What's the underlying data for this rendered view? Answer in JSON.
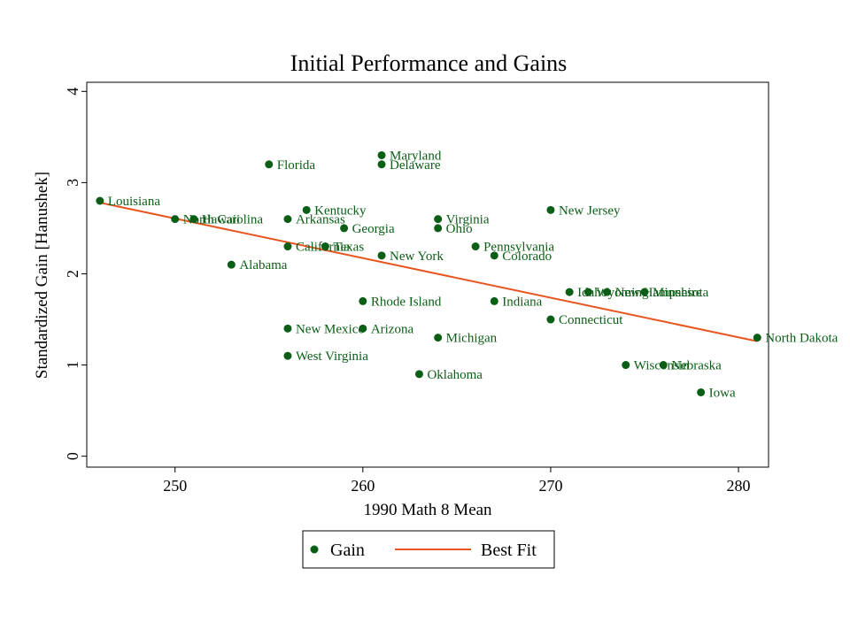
{
  "chart_data": {
    "type": "scatter",
    "title": "Initial Performance and Gains",
    "xlabel": "1990 Math 8 Mean",
    "ylabel": "Standardized Gain [Hanushek]",
    "xlim": [
      245.3,
      281.6
    ],
    "ylim": [
      -0.12,
      4.1
    ],
    "xticks": [
      250,
      260,
      270,
      280
    ],
    "yticks": [
      0,
      1,
      2,
      3,
      4
    ],
    "grid": false,
    "legend_position": "bottom-center",
    "legend": [
      {
        "label": "Gain",
        "kind": "marker"
      },
      {
        "label": "Best Fit",
        "kind": "line"
      }
    ],
    "colors": {
      "points": "#0b5e16",
      "fit": "#e8541e",
      "labels": "#0b5e16",
      "text": "#000000"
    },
    "series": [
      {
        "name": "Gain",
        "points": [
          {
            "state": "Louisiana",
            "x": 246,
            "y": 2.8
          },
          {
            "state": "North Carolina",
            "x": 250,
            "y": 2.6
          },
          {
            "state": "Hawaii",
            "x": 251,
            "y": 2.6
          },
          {
            "state": "Alabama",
            "x": 253,
            "y": 2.1
          },
          {
            "state": "Florida",
            "x": 255,
            "y": 3.2
          },
          {
            "state": "Arkansas",
            "x": 256,
            "y": 2.6
          },
          {
            "state": "California",
            "x": 256,
            "y": 2.3
          },
          {
            "state": "New Mexico",
            "x": 256,
            "y": 1.4
          },
          {
            "state": "West Virginia",
            "x": 256,
            "y": 1.1
          },
          {
            "state": "Kentucky",
            "x": 257,
            "y": 2.7
          },
          {
            "state": "Texas",
            "x": 258,
            "y": 2.3
          },
          {
            "state": "Georgia",
            "x": 259,
            "y": 2.5
          },
          {
            "state": "Rhode Island",
            "x": 260,
            "y": 1.7
          },
          {
            "state": "Arizona",
            "x": 260,
            "y": 1.4
          },
          {
            "state": "Maryland",
            "x": 261,
            "y": 3.3
          },
          {
            "state": "Delaware",
            "x": 261,
            "y": 3.2
          },
          {
            "state": "New York",
            "x": 261,
            "y": 2.2
          },
          {
            "state": "Oklahoma",
            "x": 263,
            "y": 0.9
          },
          {
            "state": "Virginia",
            "x": 264,
            "y": 2.6
          },
          {
            "state": "Ohio",
            "x": 264,
            "y": 2.5
          },
          {
            "state": "Michigan",
            "x": 264,
            "y": 1.3
          },
          {
            "state": "Pennsylvania",
            "x": 266,
            "y": 2.3
          },
          {
            "state": "Colorado",
            "x": 267,
            "y": 2.2
          },
          {
            "state": "Indiana",
            "x": 267,
            "y": 1.7
          },
          {
            "state": "New Jersey",
            "x": 270,
            "y": 2.7
          },
          {
            "state": "Connecticut",
            "x": 270,
            "y": 1.5
          },
          {
            "state": "Idaho",
            "x": 271,
            "y": 1.8
          },
          {
            "state": "Wyoming",
            "x": 272,
            "y": 1.8
          },
          {
            "state": "New Hampshire",
            "x": 273,
            "y": 1.8
          },
          {
            "state": "Minnesota",
            "x": 275,
            "y": 1.8
          },
          {
            "state": "Wisconsin",
            "x": 274,
            "y": 1.0
          },
          {
            "state": "Nebraska",
            "x": 276,
            "y": 1.0
          },
          {
            "state": "Iowa",
            "x": 278,
            "y": 0.7
          },
          {
            "state": "North Dakota",
            "x": 281,
            "y": 1.3
          }
        ]
      },
      {
        "name": "Best Fit",
        "x": [
          246,
          281
        ],
        "values": [
          2.78,
          1.26
        ]
      }
    ]
  }
}
